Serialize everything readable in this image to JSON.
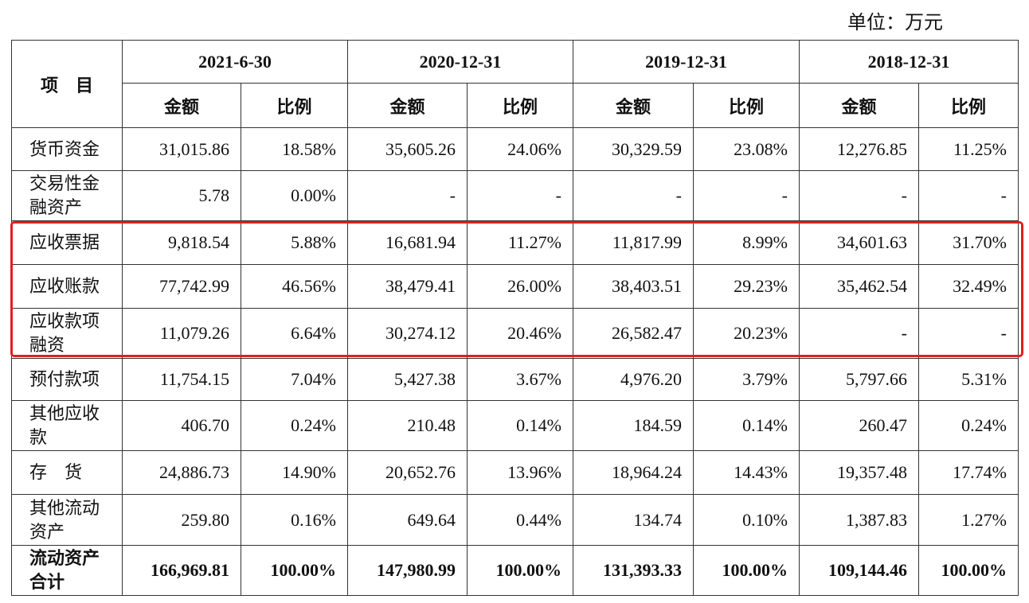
{
  "unit": "单位：万元",
  "table": {
    "header": {
      "item": "项　目",
      "columns": [
        {
          "period": "2021-6-30",
          "amount": "金额",
          "ratio": "比例"
        },
        {
          "period": "2020-12-31",
          "amount": "金额",
          "ratio": "比例"
        },
        {
          "period": "2019-12-31",
          "amount": "金额",
          "ratio": "比例"
        },
        {
          "period": "2018-12-31",
          "amount": "金额",
          "ratio": "比例"
        }
      ]
    },
    "rows": [
      {
        "item": "货币资金",
        "values": [
          "31,015.86",
          "18.58%",
          "35,605.26",
          "24.06%",
          "30,329.59",
          "23.08%",
          "12,276.85",
          "11.25%"
        ]
      },
      {
        "item": "交易性金融资产",
        "values": [
          "5.78",
          "0.00%",
          "-",
          "-",
          "-",
          "-",
          "-",
          "-"
        ]
      },
      {
        "item": "应收票据",
        "values": [
          "9,818.54",
          "5.88%",
          "16,681.94",
          "11.27%",
          "11,817.99",
          "8.99%",
          "34,601.63",
          "31.70%"
        ]
      },
      {
        "item": "应收账款",
        "values": [
          "77,742.99",
          "46.56%",
          "38,479.41",
          "26.00%",
          "38,403.51",
          "29.23%",
          "35,462.54",
          "32.49%"
        ]
      },
      {
        "item": "应收款项融资",
        "values": [
          "11,079.26",
          "6.64%",
          "30,274.12",
          "20.46%",
          "26,582.47",
          "20.23%",
          "-",
          "-"
        ]
      },
      {
        "item": "预付款项",
        "values": [
          "11,754.15",
          "7.04%",
          "5,427.38",
          "3.67%",
          "4,976.20",
          "3.79%",
          "5,797.66",
          "5.31%"
        ]
      },
      {
        "item": "其他应收款",
        "values": [
          "406.70",
          "0.24%",
          "210.48",
          "0.14%",
          "184.59",
          "0.14%",
          "260.47",
          "0.24%"
        ]
      },
      {
        "item": "存　货",
        "values": [
          "24,886.73",
          "14.90%",
          "20,652.76",
          "13.96%",
          "18,964.24",
          "14.43%",
          "19,357.48",
          "17.74%"
        ]
      },
      {
        "item": "其他流动资产",
        "values": [
          "259.80",
          "0.16%",
          "649.64",
          "0.44%",
          "134.74",
          "0.10%",
          "1,387.83",
          "1.27%"
        ]
      },
      {
        "item": "流动资产合计",
        "values": [
          "166,969.81",
          "100.00%",
          "147,980.99",
          "100.00%",
          "131,393.33",
          "100.00%",
          "109,144.46",
          "100.00%"
        ],
        "bold": true
      }
    ]
  }
}
